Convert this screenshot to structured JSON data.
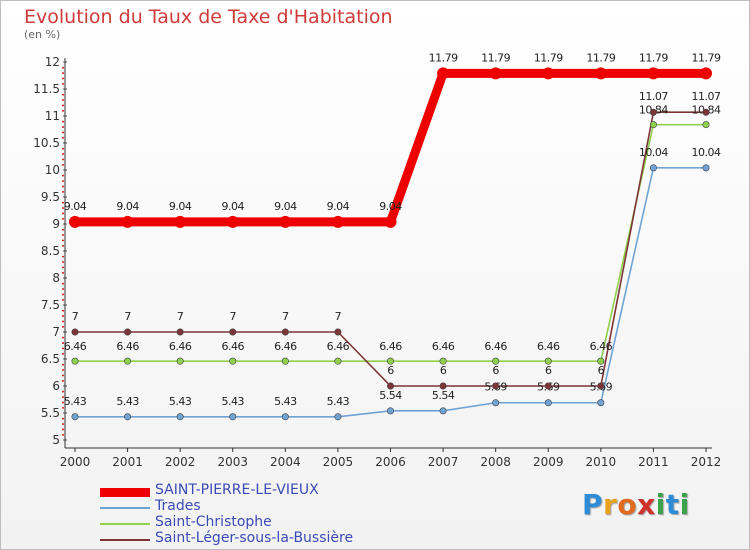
{
  "title": "Evolution du Taux de Taxe d'Habitation",
  "unit": "(en %)",
  "brand": {
    "name": "Proxiti",
    "letters": [
      "P",
      "r",
      "o",
      "x",
      "i",
      "t",
      "i"
    ],
    "colors": [
      "#2e8bd6",
      "#e8a21c",
      "#e06a1f",
      "#d0302a",
      "#3aa34a",
      "#2e8bd6",
      "#3aa34a"
    ]
  },
  "chart_data": {
    "type": "line",
    "title": "Evolution du Taux de Taxe d'Habitation",
    "ylabel": "(en %)",
    "xlabel": "",
    "categories": [
      "2000",
      "2001",
      "2002",
      "2003",
      "2004",
      "2005",
      "2006",
      "2007",
      "2008",
      "2009",
      "2010",
      "2011",
      "2012"
    ],
    "ylim": [
      5,
      12
    ],
    "yticks": [
      "5",
      "5.5",
      "6",
      "6.5",
      "7",
      "7.5",
      "8",
      "8.5",
      "9",
      "9.5",
      "10",
      "10.5",
      "11",
      "11.5",
      "12"
    ],
    "legend_position": "bottom-left",
    "series": [
      {
        "name": "SAINT-PIERRE-LE-VIEUX",
        "color": "#ee0000",
        "values": [
          9.04,
          9.04,
          9.04,
          9.04,
          9.04,
          9.04,
          9.04,
          11.79,
          11.79,
          11.79,
          11.79,
          11.79,
          11.79
        ],
        "labels": [
          "9.04",
          "9.04",
          "9.04",
          "9.04",
          "9.04",
          "9.04",
          "9.04",
          "11.79",
          "11.79",
          "11.79",
          "11.79",
          "11.79",
          "11.79"
        ]
      },
      {
        "name": "Trades",
        "color": "#6fa3d4",
        "values": [
          5.43,
          5.43,
          5.43,
          5.43,
          5.43,
          5.43,
          5.54,
          5.54,
          5.69,
          5.69,
          5.69,
          10.04,
          10.04
        ],
        "labels": [
          "5.43",
          "5.43",
          "5.43",
          "5.43",
          "5.43",
          "5.43",
          "5.54",
          "5.54",
          "5.69",
          "5.69",
          "5.69",
          "10.04",
          "10.04"
        ]
      },
      {
        "name": "Saint-Christophe",
        "color": "#8fd14f",
        "values": [
          6.46,
          6.46,
          6.46,
          6.46,
          6.46,
          6.46,
          6.46,
          6.46,
          6.46,
          6.46,
          6.46,
          10.84,
          10.84
        ],
        "labels": [
          "6.46",
          "6.46",
          "6.46",
          "6.46",
          "6.46",
          "6.46",
          "6.46",
          "6.46",
          "6.46",
          "6.46",
          "6.46",
          "10.84",
          "10.84"
        ]
      },
      {
        "name": "Saint-Léger-sous-la-Bussière",
        "color": "#7d3535",
        "values": [
          7,
          7,
          7,
          7,
          7,
          7,
          6,
          6,
          6,
          6,
          6,
          11.07,
          11.07
        ],
        "labels": [
          "7",
          "7",
          "7",
          "7",
          "7",
          "7",
          "6",
          "6",
          "6",
          "6",
          "6",
          "11.07",
          "11.07"
        ]
      }
    ]
  }
}
